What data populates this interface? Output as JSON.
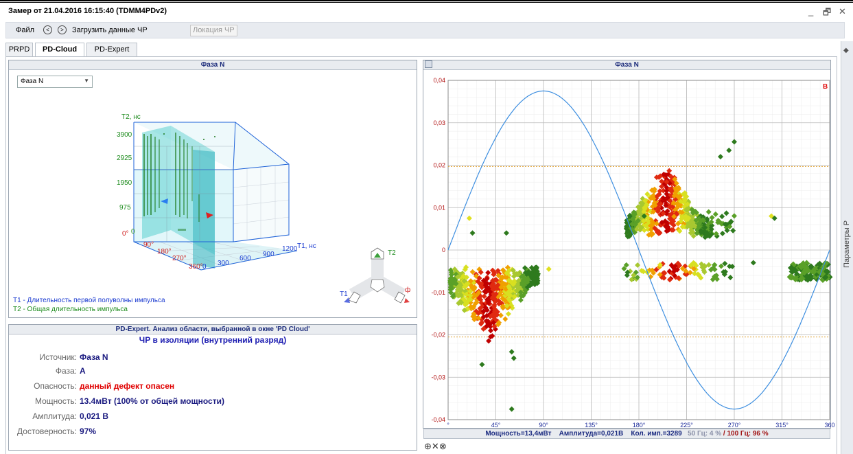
{
  "window": {
    "title": "Замер от 21.04.2016 16:15:40 (TDMM4PDv2)",
    "minimize": "_",
    "restore": "🗗",
    "close": "✕"
  },
  "toolbar": {
    "file": "Файл",
    "back_icon": "arrow-left-icon",
    "forward_icon": "arrow-right-icon",
    "load": "Загрузить данные ЧР",
    "location": "Локация ЧР"
  },
  "tabs": [
    "PRPD",
    "PD-Cloud",
    "PD-Expert"
  ],
  "active_tab": "PD-Cloud",
  "right_strip": {
    "label": "Параметры Р"
  },
  "cloud_panel": {
    "title": "Фаза N",
    "select_value": "Фаза N",
    "axis_t2_label": "T2, нс",
    "axis_t1_label": "T1, нс",
    "t2_ticks": [
      "3900",
      "2925",
      "1950",
      "975",
      "0"
    ],
    "t1_ticks": [
      "0",
      "300",
      "600",
      "900",
      "1200"
    ],
    "phase_ticks": [
      "0°",
      "90°",
      "180°",
      "270°",
      "360°"
    ],
    "legend_t1": "T1 - Длительность первой полуволны импульса",
    "legend_t2": "T2 - Общая длительность импульса",
    "nav_t1": "T1",
    "nav_t2": "T2",
    "nav_phi": "ф"
  },
  "expert_panel": {
    "title": "PD-Expert. Анализ области, выбранной в окне 'PD Cloud'",
    "diagnosis": "ЧР в изоляции (внутренний разряд)",
    "rows": [
      {
        "key": "Источник:",
        "value": "Фаза N",
        "danger": false
      },
      {
        "key": "Фаза:",
        "value": "A",
        "danger": false
      },
      {
        "key": "Опасность:",
        "value": "данный дефект опасен",
        "danger": true
      },
      {
        "key": "Мощность:",
        "value": "13.4мВт (100% от общей мощности)",
        "danger": false
      },
      {
        "key": "Амплитуда:",
        "value": "0,021 В",
        "danger": false
      },
      {
        "key": "Достоверность:",
        "value": "97%",
        "danger": false
      }
    ]
  },
  "prpd_panel": {
    "title": "Фаза N",
    "unit_marker": "В",
    "status": {
      "power": "Мощность=13,4мВт",
      "amplitude": "Амплитуда=0,021В",
      "count": "Кол. имп.=3289",
      "f50": "50 Гц: 4 %",
      "sep": "/",
      "f100": "100 Гц: 96 %"
    },
    "bottom_icons": [
      "zoom-in-icon",
      "close-icon",
      "reset-icon"
    ],
    "bottom_glyphs": "⊕✕⊗"
  },
  "chart_data": {
    "type": "scatter",
    "x_unit": "degrees",
    "y_unit": "В",
    "xlim": [
      0,
      360
    ],
    "ylim": [
      -0.04,
      0.04
    ],
    "x_ticks": [
      "°",
      "45°",
      "90°",
      "135°",
      "180°",
      "225°",
      "270°",
      "315°",
      "360"
    ],
    "y_ticks": [
      "0,04",
      "0,03",
      "0,02",
      "0,01",
      "0",
      "-0,01",
      "-0,02",
      "-0,03",
      "-0,04"
    ],
    "threshold_lines": [
      0.0197,
      -0.0205
    ],
    "sine_amplitude": 0.0375,
    "grid": true,
    "clusters": [
      {
        "name": "negative-left",
        "x_range": [
          0,
          85
        ],
        "peak_x": 38,
        "y_top": -0.004,
        "y_bottom": -0.021
      },
      {
        "name": "positive-mid",
        "x_range": [
          165,
          250
        ],
        "peak_x": 205,
        "y_bottom": 0.003,
        "y_top": 0.019
      },
      {
        "name": "negative-mid",
        "x_range": [
          165,
          270
        ],
        "y_top": -0.003,
        "y_bottom": -0.009
      },
      {
        "name": "negative-right",
        "x_range": [
          320,
          360
        ],
        "y_top": -0.003,
        "y_bottom": -0.007
      }
    ],
    "outliers": [
      [
        20,
        0.0075
      ],
      [
        23,
        0.004
      ],
      [
        55,
        0.004
      ],
      [
        95,
        -0.0045
      ],
      [
        60,
        -0.024
      ],
      [
        62,
        -0.0255
      ],
      [
        60,
        -0.0375
      ],
      [
        32,
        -0.027
      ],
      [
        270,
        0.0255
      ],
      [
        265,
        0.0235
      ],
      [
        257,
        0.022
      ],
      [
        185,
        0.008
      ],
      [
        305,
        0.008
      ],
      [
        308,
        0.0075
      ],
      [
        288,
        -0.003
      ],
      [
        200,
        -0.0035
      ]
    ]
  }
}
